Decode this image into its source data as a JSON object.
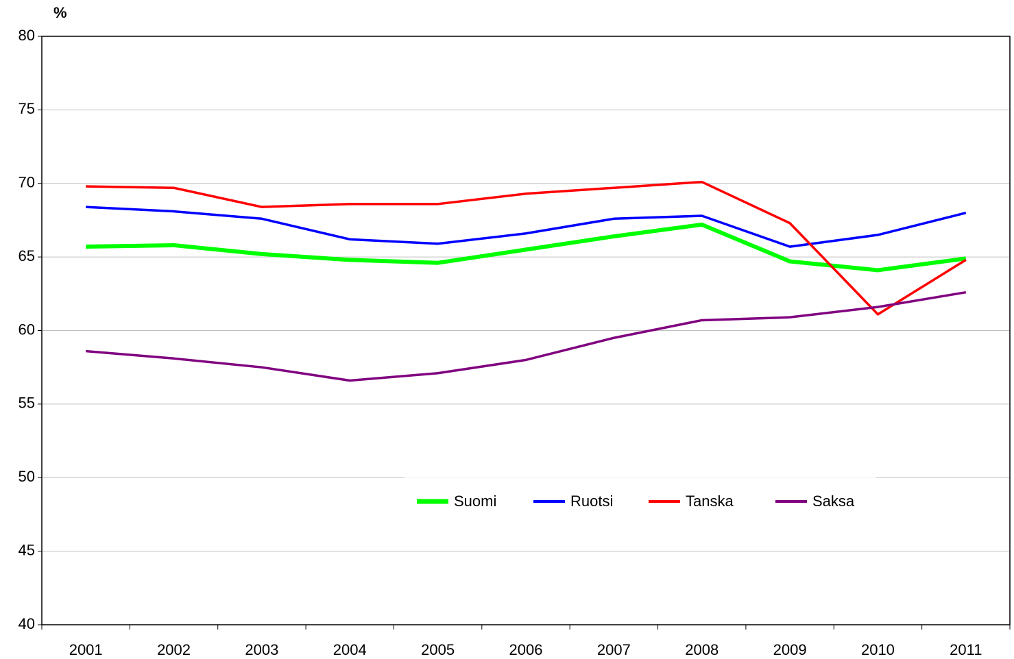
{
  "chart_data": {
    "type": "line",
    "ylabel": "%",
    "categories": [
      "2001",
      "2002",
      "2003",
      "2004",
      "2005",
      "2006",
      "2007",
      "2008",
      "2009",
      "2010",
      "2011"
    ],
    "series": [
      {
        "name": "Suomi",
        "color": "#00ff00",
        "values": [
          65.7,
          65.8,
          65.2,
          64.8,
          64.6,
          65.5,
          66.4,
          67.2,
          64.7,
          64.1,
          64.9
        ]
      },
      {
        "name": "Ruotsi",
        "color": "#0000ff",
        "values": [
          68.4,
          68.1,
          67.6,
          66.2,
          65.9,
          66.6,
          67.6,
          67.8,
          65.7,
          66.5,
          68.0
        ]
      },
      {
        "name": "Tanska",
        "color": "#ff0000",
        "values": [
          69.8,
          69.7,
          68.4,
          68.6,
          68.6,
          69.3,
          69.7,
          70.1,
          67.3,
          61.1,
          64.8
        ]
      },
      {
        "name": "Saksa",
        "color": "#800080",
        "values": [
          58.6,
          58.1,
          57.5,
          56.6,
          57.1,
          58.0,
          59.5,
          60.7,
          60.9,
          61.6,
          62.6
        ]
      }
    ],
    "ylim": [
      40,
      80
    ],
    "yticks": [
      40,
      45,
      50,
      55,
      60,
      65,
      70,
      75,
      80
    ],
    "grid": true,
    "legend": "lower center"
  }
}
